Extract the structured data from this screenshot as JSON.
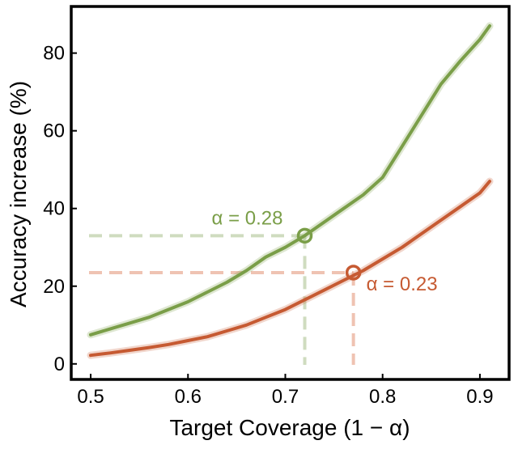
{
  "chart_data": {
    "type": "line",
    "title": "",
    "xlabel": "Target Coverage (1 − α)",
    "ylabel": "Accuracy increase (%)",
    "xlim": [
      0.48,
      0.93
    ],
    "ylim": [
      -4,
      92
    ],
    "xticks": [
      0.5,
      0.6,
      0.7,
      0.8,
      0.9
    ],
    "xtick_labels": [
      "0.5",
      "0.6",
      "0.7",
      "0.8",
      "0.9"
    ],
    "yticks": [
      0,
      20,
      40,
      60,
      80
    ],
    "ytick_labels": [
      "0",
      "20",
      "40",
      "60",
      "80"
    ],
    "grid": false,
    "x": [
      0.5,
      0.52,
      0.54,
      0.56,
      0.58,
      0.6,
      0.62,
      0.64,
      0.66,
      0.68,
      0.7,
      0.72,
      0.74,
      0.76,
      0.78,
      0.8,
      0.82,
      0.84,
      0.86,
      0.88,
      0.9,
      0.91
    ],
    "series": [
      {
        "color": "#7a9e48",
        "values": [
          7.5,
          9.0,
          10.5,
          12.0,
          14.0,
          16.0,
          18.5,
          21.0,
          24.0,
          27.5,
          30.0,
          33.0,
          36.5,
          40.0,
          43.5,
          48.0,
          56.0,
          64.0,
          72.0,
          78.0,
          83.5,
          87.0
        ]
      },
      {
        "color": "#c65a32",
        "values": [
          2.2,
          2.8,
          3.5,
          4.2,
          5.0,
          6.0,
          7.0,
          8.5,
          10.0,
          12.0,
          14.0,
          16.5,
          19.0,
          21.5,
          24.0,
          27.0,
          30.0,
          33.5,
          37.0,
          40.5,
          44.0,
          47.0
        ]
      }
    ],
    "annotations": [
      {
        "label": "α = 0.28",
        "x": 0.72,
        "y": 33.0,
        "color": "#7a9e48",
        "guide_color": "#cfdcbf"
      },
      {
        "label": "α = 0.23",
        "x": 0.77,
        "y": 23.5,
        "color": "#c65a32",
        "guide_color": "#efc3b2"
      }
    ]
  }
}
